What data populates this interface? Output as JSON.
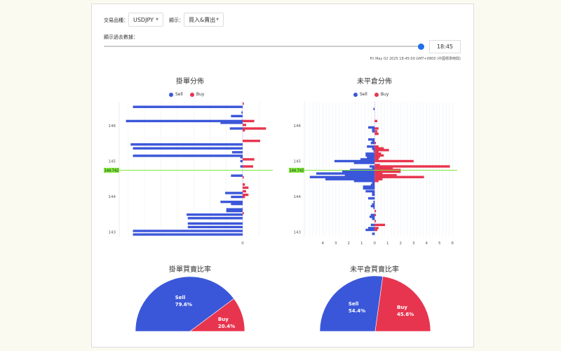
{
  "controls": {
    "symbol_label": "交易品種：",
    "symbol_value": "USDJPY",
    "display_label": "顯示：",
    "display_value": "買入&賣出",
    "history_label": "顯示過去數據：",
    "slider_position_percent": 100,
    "time_value": "18:45",
    "datetime": "Fri May 02 2025 18:45:00 GMT+0800 (中國標準時間)"
  },
  "colors": {
    "sell": "#3b57d9",
    "buy": "#e8354f",
    "current_price": "#7ee83a"
  },
  "legend": {
    "sell": "Sell",
    "buy": "Buy"
  },
  "chart_data": [
    {
      "type": "bar",
      "orientation": "horizontal",
      "title": "掛單分佈",
      "current_price": "144.742",
      "ylim": [
        142.8,
        146.7
      ],
      "y_ticks": [
        "146",
        "145",
        "144",
        "143"
      ],
      "x_ticks": [
        "0"
      ],
      "series": [
        {
          "name": "Sell",
          "points": [
            [
              146.53,
              94
            ],
            [
              146.37,
              1
            ],
            [
              146.27,
              10
            ],
            [
              146.13,
              100
            ],
            [
              146.08,
              19
            ],
            [
              145.92,
              11
            ],
            [
              145.47,
              96
            ],
            [
              145.36,
              94
            ],
            [
              145.25,
              9
            ],
            [
              145.15,
              94
            ],
            [
              145.11,
              2
            ],
            [
              145.0,
              2
            ],
            [
              144.85,
              2
            ],
            [
              144.59,
              10
            ],
            [
              144.1,
              15
            ],
            [
              143.99,
              10
            ],
            [
              143.85,
              19
            ],
            [
              143.79,
              10
            ],
            [
              143.64,
              14
            ],
            [
              143.59,
              14
            ],
            [
              143.49,
              48
            ],
            [
              143.39,
              47
            ],
            [
              143.24,
              47
            ],
            [
              143.14,
              47
            ],
            [
              143.03,
              94
            ],
            [
              142.93,
              94
            ]
          ]
        },
        {
          "name": "Buy",
          "points": [
            [
              146.62,
              1
            ],
            [
              146.13,
              10
            ],
            [
              146.02,
              3
            ],
            [
              145.92,
              20
            ],
            [
              145.87,
              2
            ],
            [
              145.57,
              15
            ],
            [
              145.05,
              10
            ],
            [
              144.85,
              9
            ],
            [
              144.54,
              1
            ],
            [
              144.34,
              2
            ],
            [
              144.25,
              5
            ],
            [
              144.15,
              3
            ],
            [
              144.05,
              5
            ],
            [
              143.99,
              2
            ],
            [
              143.53,
              1
            ]
          ]
        }
      ]
    },
    {
      "type": "bar",
      "orientation": "horizontal",
      "title": "未平倉分佈",
      "current_price": "144.742",
      "ylim": [
        142.8,
        146.7
      ],
      "y_ticks": [
        "146",
        "145",
        "144",
        "143"
      ],
      "x_ticks": [
        "4",
        "3",
        "2",
        "1",
        "0",
        "1",
        "2",
        "3",
        "4",
        "5",
        "6"
      ],
      "series": [
        {
          "name": "Sell",
          "points": [
            [
              146.47,
              0.1
            ],
            [
              145.95,
              0.5
            ],
            [
              145.89,
              0.2
            ],
            [
              145.84,
              0.2
            ],
            [
              145.61,
              0.5
            ],
            [
              145.55,
              0.2
            ],
            [
              145.51,
              0.3
            ],
            [
              145.41,
              0.6
            ],
            [
              145.35,
              0.2
            ],
            [
              145.29,
              0.1
            ],
            [
              145.21,
              0.7
            ],
            [
              145.16,
              0.7
            ],
            [
              145.11,
              0.6
            ],
            [
              145.05,
              1.1
            ],
            [
              145.0,
              3.1
            ],
            [
              144.95,
              1.6
            ],
            [
              144.85,
              0.4
            ],
            [
              144.79,
              0.2
            ],
            [
              144.75,
              1.9
            ],
            [
              144.7,
              2.5
            ],
            [
              144.65,
              4.5
            ],
            [
              144.6,
              2.3
            ],
            [
              144.55,
              5.0
            ],
            [
              144.49,
              3.8
            ],
            [
              144.44,
              1.6
            ],
            [
              144.39,
              0.2
            ],
            [
              144.33,
              0.3
            ],
            [
              144.28,
              0.9
            ],
            [
              144.23,
              0.9
            ],
            [
              144.15,
              0.7
            ],
            [
              144.1,
              0.2
            ],
            [
              144.05,
              0.2
            ],
            [
              143.95,
              0.5
            ],
            [
              143.85,
              0.1
            ],
            [
              143.78,
              0.2
            ],
            [
              143.73,
              0.3
            ],
            [
              143.68,
              0.1
            ],
            [
              143.48,
              0.3
            ],
            [
              143.43,
              0.4
            ],
            [
              143.37,
              0.2
            ],
            [
              143.2,
              0.3
            ],
            [
              143.11,
              0.5
            ],
            [
              143.06,
              0.7
            ],
            [
              142.95,
              0.2
            ]
          ]
        },
        {
          "name": "Buy",
          "points": [
            [
              146.13,
              0.2
            ],
            [
              145.92,
              0.3
            ],
            [
              145.84,
              0.2
            ],
            [
              145.77,
              0.3
            ],
            [
              145.51,
              0.1
            ],
            [
              145.41,
              0.3
            ],
            [
              145.36,
              0.7
            ],
            [
              145.31,
              1.1
            ],
            [
              145.25,
              0.3
            ],
            [
              145.21,
              0.5
            ],
            [
              145.16,
              0.7
            ],
            [
              145.11,
              0.4
            ],
            [
              145.05,
              0.3
            ],
            [
              145.0,
              3.0
            ],
            [
              144.89,
              0.4
            ],
            [
              144.85,
              5.8
            ],
            [
              144.79,
              1.4
            ],
            [
              144.75,
              2.0
            ],
            [
              144.7,
              2.0
            ],
            [
              144.65,
              0.6
            ],
            [
              144.6,
              1.7
            ],
            [
              144.55,
              3.8
            ],
            [
              144.49,
              0.6
            ],
            [
              144.44,
              0.3
            ],
            [
              143.59,
              0.1
            ],
            [
              143.48,
              0.1
            ],
            [
              143.31,
              0.1
            ],
            [
              143.2,
              0.8
            ],
            [
              143.11,
              0.3
            ],
            [
              143.06,
              0.2
            ]
          ]
        }
      ]
    },
    {
      "type": "pie",
      "variant": "half",
      "title": "掛單買賣比率",
      "slices": [
        {
          "label": "Sell",
          "value": 79.6,
          "text": "79.6%"
        },
        {
          "label": "Buy",
          "value": 20.4,
          "text": "20.4%"
        }
      ]
    },
    {
      "type": "pie",
      "variant": "half",
      "title": "未平倉買賣比率",
      "slices": [
        {
          "label": "Sell",
          "value": 54.4,
          "text": "54.4%"
        },
        {
          "label": "Buy",
          "value": 45.6,
          "text": "45.6%"
        }
      ]
    }
  ]
}
